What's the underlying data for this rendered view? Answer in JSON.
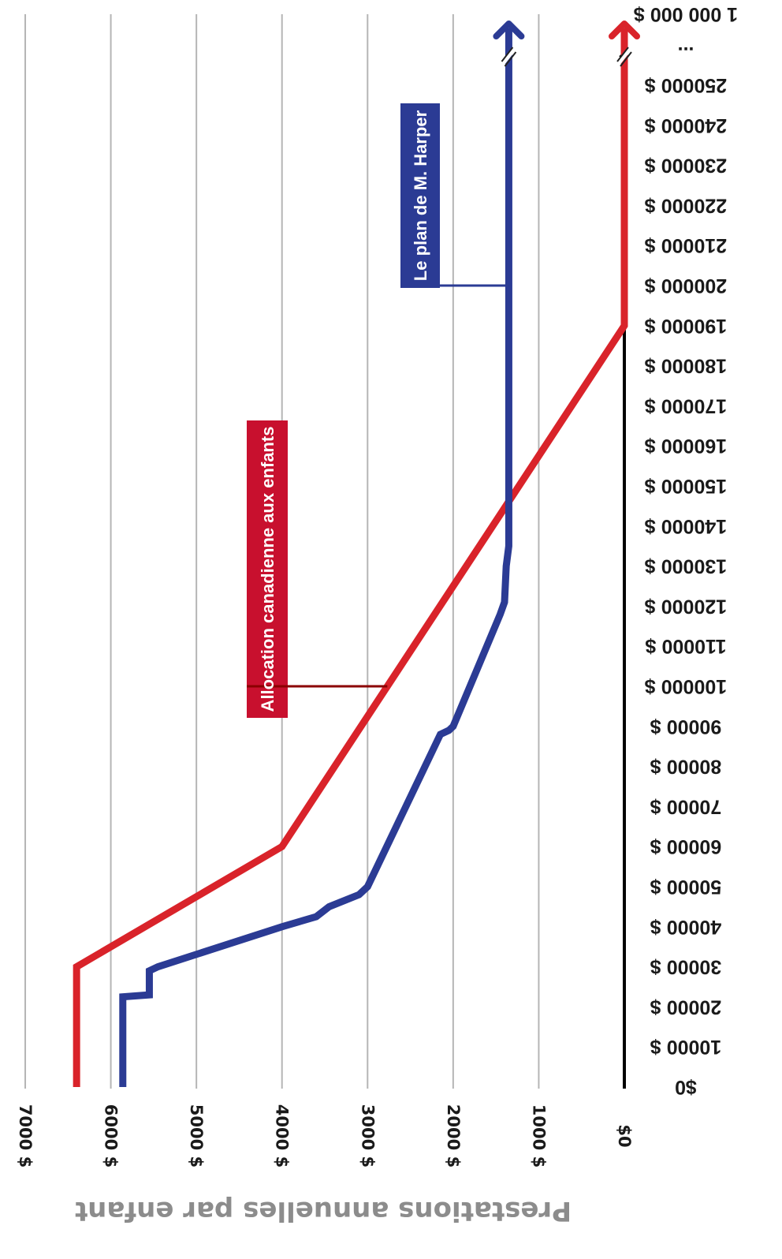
{
  "chart_data": {
    "type": "line",
    "title": "",
    "xlabel": "",
    "ylabel": "Prestations annuelles par enfant",
    "x_ticks": [
      "$0",
      "10000 $",
      "20000 $",
      "30000 $",
      "40000 $",
      "50000 $",
      "60000 $",
      "70000 $",
      "80000 $",
      "90000 $",
      "100000 $",
      "110000 $",
      "120000 $",
      "130000 $",
      "140000 $",
      "150000 $",
      "160000 $",
      "170000 $",
      "180000 $",
      "190000 $",
      "200000 $",
      "210000 $",
      "220000 $",
      "230000 $",
      "240000 $",
      "250000 $",
      "...",
      "1 000 000 $"
    ],
    "y_ticks": [
      "$0",
      "1000 $",
      "2000 $",
      "3000 $",
      "4000 $",
      "5000 $",
      "6000 $",
      "7000 $"
    ],
    "ylim": [
      0,
      7000
    ],
    "grid": "major gridlines on the benefit axis",
    "axis_break": "//",
    "series": [
      {
        "name": "Allocation canadienne aux enfants",
        "color": "#d9232a",
        "label_color": "#c8102e",
        "connector_color": "#8b0000",
        "label_at_income": 100000,
        "extends_to_axis_end": true,
        "points": [
          [
            0,
            6400
          ],
          [
            30000,
            6400
          ],
          [
            60000,
            4000
          ],
          [
            190000,
            0
          ],
          [
            250000,
            0
          ]
        ]
      },
      {
        "name": "Le plan de M. Harper",
        "color": "#2b3b94",
        "label_color": "#2b3b94",
        "connector_color": "#2b3b94",
        "label_at_income": 200000,
        "extends_to_axis_end": true,
        "points": [
          [
            0,
            5860
          ],
          [
            22500,
            5860
          ],
          [
            23000,
            5550
          ],
          [
            29000,
            5550
          ],
          [
            30000,
            5450
          ],
          [
            40000,
            4000
          ],
          [
            42500,
            3600
          ],
          [
            45000,
            3450
          ],
          [
            48000,
            3100
          ],
          [
            50000,
            3000
          ],
          [
            88000,
            2150
          ],
          [
            89000,
            2050
          ],
          [
            90000,
            2000
          ],
          [
            118000,
            1450
          ],
          [
            121000,
            1400
          ],
          [
            130000,
            1380
          ],
          [
            135000,
            1350
          ],
          [
            142000,
            1350
          ],
          [
            250000,
            1350
          ]
        ]
      }
    ]
  }
}
